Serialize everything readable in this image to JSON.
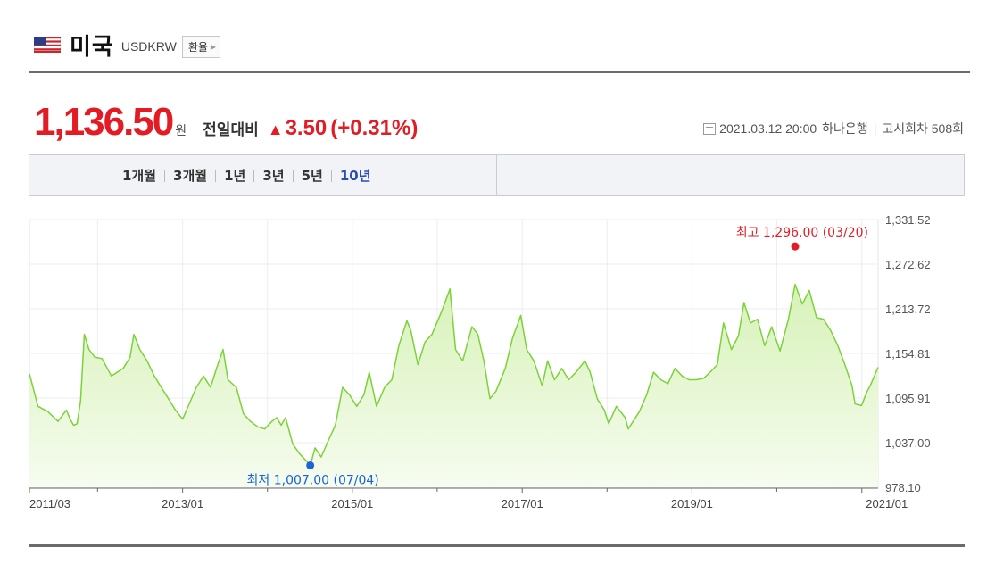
{
  "header": {
    "country": "미국",
    "code": "USDKRW",
    "tag_button": "환율"
  },
  "price": {
    "value": "1,136.50",
    "unit": "원",
    "compare_label": "전일대비",
    "change": "3.50",
    "change_pct": "(+0.31%)",
    "direction": "up"
  },
  "meta": {
    "datetime": "2021.03.12 20:00",
    "bank": "하나은행",
    "notice": "고시회차 508회"
  },
  "tabs": [
    "1개월",
    "3개월",
    "1년",
    "3년",
    "5년",
    "10년"
  ],
  "active_tab": "10년",
  "colors": {
    "accent_red": "#e31b23",
    "accent_blue": "#1a63d8",
    "line": "#7cd23a",
    "fill_top": "#d7f2b8",
    "fill_bottom": "#f6fcef"
  },
  "chart_data": {
    "type": "area",
    "x_range": [
      "2011-03-14",
      "2021-03-12"
    ],
    "ylim": [
      978.1,
      1331.52
    ],
    "y_ticks": [
      "1,331.52",
      "1,272.62",
      "1,213.72",
      "1,154.81",
      "1,095.91",
      "1,037.00",
      "978.10"
    ],
    "x_tick_labels": [
      {
        "date": "2011-03-14",
        "label": "2011/03"
      },
      {
        "date": "2013-01-01",
        "label": "2013/01"
      },
      {
        "date": "2015-01-01",
        "label": "2015/01"
      },
      {
        "date": "2017-01-01",
        "label": "2017/01"
      },
      {
        "date": "2019-01-01",
        "label": "2019/01"
      },
      {
        "date": "2021-01-01",
        "label": "2021/01"
      }
    ],
    "high": {
      "date": "2020-03-20",
      "value": 1296.0,
      "label": "최고 1,296.00 (03/20)"
    },
    "low": {
      "date": "2014-07-04",
      "value": 1007.0,
      "label": "최저 1,007.00 (07/04)"
    },
    "series": [
      {
        "points": [
          [
            "2011-03-14",
            1128
          ],
          [
            "2011-04-20",
            1085
          ],
          [
            "2011-06-01",
            1078
          ],
          [
            "2011-07-15",
            1065
          ],
          [
            "2011-08-20",
            1080
          ],
          [
            "2011-09-05",
            1068
          ],
          [
            "2011-09-20",
            1060
          ],
          [
            "2011-10-05",
            1062
          ],
          [
            "2011-10-20",
            1092
          ],
          [
            "2011-11-05",
            1180
          ],
          [
            "2011-11-25",
            1160
          ],
          [
            "2011-12-20",
            1150
          ],
          [
            "2012-01-20",
            1148
          ],
          [
            "2012-03-01",
            1125
          ],
          [
            "2012-04-20",
            1135
          ],
          [
            "2012-05-20",
            1150
          ],
          [
            "2012-06-05",
            1180
          ],
          [
            "2012-07-01",
            1160
          ],
          [
            "2012-08-01",
            1145
          ],
          [
            "2012-09-01",
            1125
          ],
          [
            "2012-10-01",
            1110
          ],
          [
            "2012-11-01",
            1095
          ],
          [
            "2012-12-01",
            1080
          ],
          [
            "2013-01-01",
            1068
          ],
          [
            "2013-02-01",
            1090
          ],
          [
            "2013-03-01",
            1110
          ],
          [
            "2013-04-01",
            1125
          ],
          [
            "2013-05-01",
            1110
          ],
          [
            "2013-06-01",
            1140
          ],
          [
            "2013-06-24",
            1160
          ],
          [
            "2013-07-15",
            1120
          ],
          [
            "2013-08-20",
            1110
          ],
          [
            "2013-09-20",
            1075
          ],
          [
            "2013-10-20",
            1065
          ],
          [
            "2013-11-20",
            1058
          ],
          [
            "2013-12-20",
            1055
          ],
          [
            "2014-01-20",
            1065
          ],
          [
            "2014-02-10",
            1070
          ],
          [
            "2014-03-01",
            1060
          ],
          [
            "2014-03-20",
            1070
          ],
          [
            "2014-04-20",
            1035
          ],
          [
            "2014-05-20",
            1022
          ],
          [
            "2014-06-20",
            1012
          ],
          [
            "2014-07-04",
            1007
          ],
          [
            "2014-07-25",
            1030
          ],
          [
            "2014-08-20",
            1018
          ],
          [
            "2014-09-20",
            1040
          ],
          [
            "2014-10-20",
            1060
          ],
          [
            "2014-11-20",
            1110
          ],
          [
            "2014-12-20",
            1100
          ],
          [
            "2015-01-20",
            1085
          ],
          [
            "2015-02-20",
            1100
          ],
          [
            "2015-03-15",
            1130
          ],
          [
            "2015-04-15",
            1085
          ],
          [
            "2015-05-20",
            1110
          ],
          [
            "2015-06-20",
            1120
          ],
          [
            "2015-07-20",
            1165
          ],
          [
            "2015-08-24",
            1198
          ],
          [
            "2015-09-10",
            1185
          ],
          [
            "2015-10-10",
            1140
          ],
          [
            "2015-11-10",
            1170
          ],
          [
            "2015-12-10",
            1180
          ],
          [
            "2016-01-20",
            1210
          ],
          [
            "2016-02-25",
            1240
          ],
          [
            "2016-03-20",
            1160
          ],
          [
            "2016-04-20",
            1145
          ],
          [
            "2016-05-30",
            1190
          ],
          [
            "2016-06-24",
            1180
          ],
          [
            "2016-07-20",
            1145
          ],
          [
            "2016-08-15",
            1095
          ],
          [
            "2016-09-10",
            1105
          ],
          [
            "2016-10-20",
            1135
          ],
          [
            "2016-11-20",
            1175
          ],
          [
            "2016-12-26",
            1205
          ],
          [
            "2017-01-20",
            1160
          ],
          [
            "2017-02-20",
            1145
          ],
          [
            "2017-03-28",
            1112
          ],
          [
            "2017-04-20",
            1145
          ],
          [
            "2017-05-20",
            1120
          ],
          [
            "2017-06-20",
            1135
          ],
          [
            "2017-07-20",
            1120
          ],
          [
            "2017-08-20",
            1130
          ],
          [
            "2017-09-28",
            1145
          ],
          [
            "2017-10-20",
            1130
          ],
          [
            "2017-11-20",
            1095
          ],
          [
            "2017-12-20",
            1080
          ],
          [
            "2018-01-08",
            1062
          ],
          [
            "2018-02-10",
            1085
          ],
          [
            "2018-03-20",
            1070
          ],
          [
            "2018-04-02",
            1055
          ],
          [
            "2018-05-20",
            1078
          ],
          [
            "2018-06-20",
            1100
          ],
          [
            "2018-07-20",
            1130
          ],
          [
            "2018-08-20",
            1120
          ],
          [
            "2018-09-20",
            1115
          ],
          [
            "2018-10-20",
            1135
          ],
          [
            "2018-11-20",
            1125
          ],
          [
            "2018-12-20",
            1120
          ],
          [
            "2019-01-20",
            1120
          ],
          [
            "2019-02-20",
            1122
          ],
          [
            "2019-03-20",
            1130
          ],
          [
            "2019-04-20",
            1140
          ],
          [
            "2019-05-17",
            1195
          ],
          [
            "2019-06-20",
            1160
          ],
          [
            "2019-07-20",
            1178
          ],
          [
            "2019-08-13",
            1222
          ],
          [
            "2019-09-10",
            1195
          ],
          [
            "2019-10-10",
            1200
          ],
          [
            "2019-11-10",
            1165
          ],
          [
            "2019-12-10",
            1190
          ],
          [
            "2020-01-15",
            1158
          ],
          [
            "2020-02-20",
            1200
          ],
          [
            "2020-03-20",
            1246
          ],
          [
            "2020-04-20",
            1220
          ],
          [
            "2020-05-20",
            1238
          ],
          [
            "2020-06-20",
            1202
          ],
          [
            "2020-07-20",
            1200
          ],
          [
            "2020-08-20",
            1185
          ],
          [
            "2020-09-20",
            1165
          ],
          [
            "2020-10-20",
            1140
          ],
          [
            "2020-11-20",
            1112
          ],
          [
            "2020-12-03",
            1088
          ],
          [
            "2020-12-31",
            1086
          ],
          [
            "2021-01-20",
            1102
          ],
          [
            "2021-02-10",
            1115
          ],
          [
            "2021-03-12",
            1136.5
          ]
        ]
      }
    ]
  }
}
